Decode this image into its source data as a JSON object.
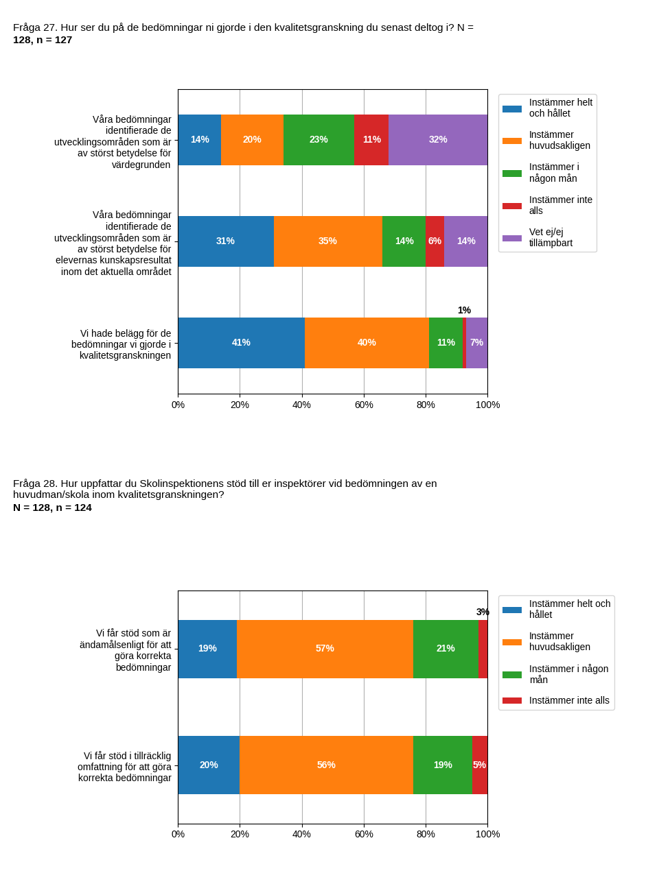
{
  "chart_data": [
    {
      "type": "bar",
      "orientation": "horizontal",
      "stacked": true,
      "data_labels": true,
      "grid": true,
      "legend": "upper left",
      "title": "Fråga 27. Hur ser du på de bedömningar ni gjorde i den kvalitetsgranskning du senast deltog i? N =",
      "subtitle": "128, n = 127",
      "categories": [
        "Våra bedömningar\nidentifierade de\nutvecklingsområden som är\nav störst betydelse för\nvärdegrunden",
        "Våra bedömningar\nidentifierade de\nutvecklingsområden som är\nav störst betydelse för\nelevernas kunskapsresultat\ninom det aktuella området",
        "Vi hade belägg för de\nbedömningar vi gjorde i\nkvalitetsgranskningen"
      ],
      "series": [
        {
          "name": "Instämmer helt\noch hållet",
          "values": [
            14,
            31,
            41
          ],
          "value_labels": [
            "14%",
            "31%",
            "41%"
          ]
        },
        {
          "name": "Instämmer\nhuvudsakligen",
          "values": [
            20,
            35,
            40
          ],
          "value_labels": [
            "20%",
            "35%",
            "40%"
          ]
        },
        {
          "name": "Instämmer i\nnågon mån",
          "values": [
            23,
            14,
            11
          ],
          "value_labels": [
            "23%",
            "14%",
            "11%"
          ]
        },
        {
          "name": "Instämmer inte\nalls",
          "values": [
            11,
            6,
            1
          ],
          "value_labels": [
            "11%",
            "6%",
            "1%"
          ]
        },
        {
          "name": "Vet ej/ej\ntillämpbart",
          "values": [
            32,
            14,
            7
          ],
          "value_labels": [
            "32%",
            "14%",
            "7%"
          ]
        }
      ],
      "xlim": [
        0,
        100
      ],
      "xticks": [
        {
          "value": 0,
          "label": "0%"
        },
        {
          "value": 20,
          "label": "20%"
        },
        {
          "value": 40,
          "label": "40%"
        },
        {
          "value": 60,
          "label": "60%"
        },
        {
          "value": 80,
          "label": "80%"
        },
        {
          "value": 100,
          "label": "100%"
        }
      ]
    },
    {
      "type": "bar",
      "orientation": "horizontal",
      "stacked": true,
      "data_labels": true,
      "grid": true,
      "legend": "upper left",
      "title": "Fråga 28. Hur uppfattar du Skolinspektionens stöd till er inspektörer vid bedömningen av en\nhuvudman/skola inom kvalitetsgranskningen?",
      "subtitle": "N = 128, n = 124",
      "categories": [
        "Vi får stöd som är\nändamålsenligt för att\ngöra korrekta\nbedömningar",
        "Vi får stöd i tillräcklig\nomfattning för att göra\nkorrekta bedömningar"
      ],
      "series": [
        {
          "name": "Instämmer helt och\nhållet",
          "values": [
            19,
            20
          ],
          "value_labels": [
            "19%",
            "20%"
          ]
        },
        {
          "name": "Instämmer\nhuvudsakligen",
          "values": [
            57,
            56
          ],
          "value_labels": [
            "57%",
            "56%"
          ]
        },
        {
          "name": "Instämmer i någon\nmån",
          "values": [
            21,
            19
          ],
          "value_labels": [
            "21%",
            "19%"
          ]
        },
        {
          "name": "Instämmer inte alls",
          "values": [
            3,
            5
          ],
          "value_labels": [
            "3%",
            "5%"
          ]
        }
      ],
      "xlim": [
        0,
        100
      ],
      "xticks": [
        {
          "value": 0,
          "label": "0%"
        },
        {
          "value": 20,
          "label": "20%"
        },
        {
          "value": 40,
          "label": "40%"
        },
        {
          "value": 60,
          "label": "60%"
        },
        {
          "value": 80,
          "label": "80%"
        },
        {
          "value": 100,
          "label": "100%"
        }
      ]
    }
  ]
}
